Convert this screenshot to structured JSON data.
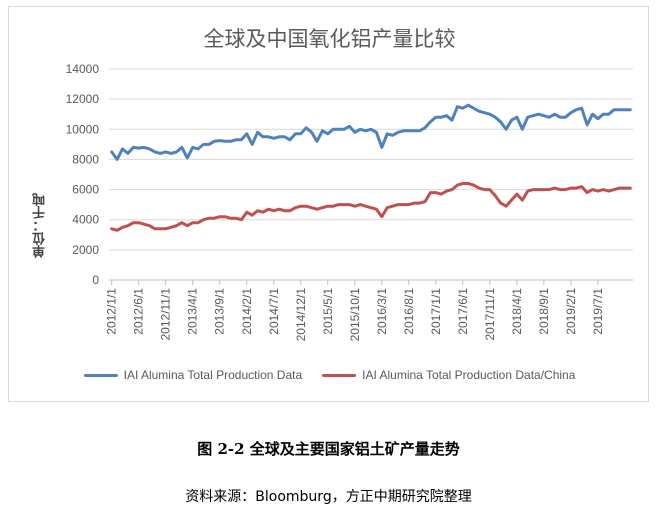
{
  "caption": "图 2-2 全球及主要国家铝土矿产量走势",
  "source": "资料来源：Bloomburg，方正中期研究院整理",
  "colors": {
    "series_1": "#4f81bd",
    "series_2": "#c0504d",
    "grid": "#d9d9d9",
    "text": "#595959"
  },
  "chart_data": {
    "type": "line",
    "title": "全球及中国氧化铝产量比较",
    "ylabel": "单位：千吨",
    "xlabel": "",
    "ylim": [
      0,
      14000
    ],
    "y_ticks": [
      "0",
      "2000",
      "4000",
      "6000",
      "8000",
      "10000",
      "12000",
      "14000"
    ],
    "x_ticks": [
      "2012/1/1",
      "2012/6/1",
      "2012/11/1",
      "2013/4/1",
      "2013/9/1",
      "2014/2/1",
      "2014/7/1",
      "2014/12/1",
      "2015/5/1",
      "2015/10/1",
      "2016/3/1",
      "2016/8/1",
      "2017/1/1",
      "2017/6/1",
      "2017/11/1",
      "2018/4/1",
      "2018/9/1",
      "2019/2/1",
      "2019/7/1"
    ],
    "legend_position": "bottom",
    "grid": true,
    "x_start": "2012/1/1",
    "series": [
      {
        "name": "IAI Alumina Total Production Data",
        "values": [
          8500,
          8000,
          8700,
          8400,
          8800,
          8750,
          8800,
          8700,
          8500,
          8400,
          8500,
          8400,
          8500,
          8800,
          8100,
          8800,
          8700,
          9000,
          9000,
          9200,
          9250,
          9200,
          9200,
          9300,
          9300,
          9700,
          9000,
          9800,
          9500,
          9500,
          9400,
          9500,
          9500,
          9300,
          9700,
          9700,
          10100,
          9800,
          9200,
          9900,
          9700,
          10000,
          10000,
          10000,
          10200,
          9800,
          10000,
          9900,
          10000,
          9800,
          8800,
          9700,
          9600,
          9800,
          9900,
          9900,
          9900,
          9900,
          10100,
          10500,
          10800,
          10800,
          10900,
          10600,
          11500,
          11400,
          11600,
          11400,
          11200,
          11100,
          11000,
          10800,
          10500,
          10000,
          10600,
          10800,
          10000,
          10800,
          10900,
          11000,
          10900,
          10800,
          11000,
          10800,
          10800,
          11100,
          11300,
          11400,
          10300,
          11000,
          10700,
          11000,
          11000,
          11300,
          11300,
          11300,
          11300
        ]
      },
      {
        "name": "IAI Alumina Total Production Data/China",
        "values": [
          3400,
          3300,
          3500,
          3600,
          3800,
          3800,
          3700,
          3600,
          3400,
          3400,
          3400,
          3500,
          3600,
          3800,
          3600,
          3800,
          3800,
          4000,
          4100,
          4100,
          4200,
          4200,
          4100,
          4100,
          4000,
          4500,
          4300,
          4600,
          4500,
          4700,
          4600,
          4700,
          4600,
          4600,
          4800,
          4900,
          4900,
          4800,
          4700,
          4800,
          4900,
          4900,
          5000,
          5000,
          5000,
          4900,
          5000,
          4900,
          4800,
          4700,
          4200,
          4800,
          4900,
          5000,
          5000,
          5000,
          5100,
          5100,
          5200,
          5800,
          5800,
          5700,
          5900,
          6000,
          6300,
          6400,
          6400,
          6300,
          6100,
          6000,
          6000,
          5600,
          5100,
          4900,
          5300,
          5700,
          5300,
          5900,
          6000,
          6000,
          6000,
          6000,
          6100,
          6000,
          6000,
          6100,
          6100,
          6200,
          5800,
          6000,
          5900,
          6000,
          5900,
          6000,
          6100,
          6100,
          6100
        ]
      }
    ]
  }
}
